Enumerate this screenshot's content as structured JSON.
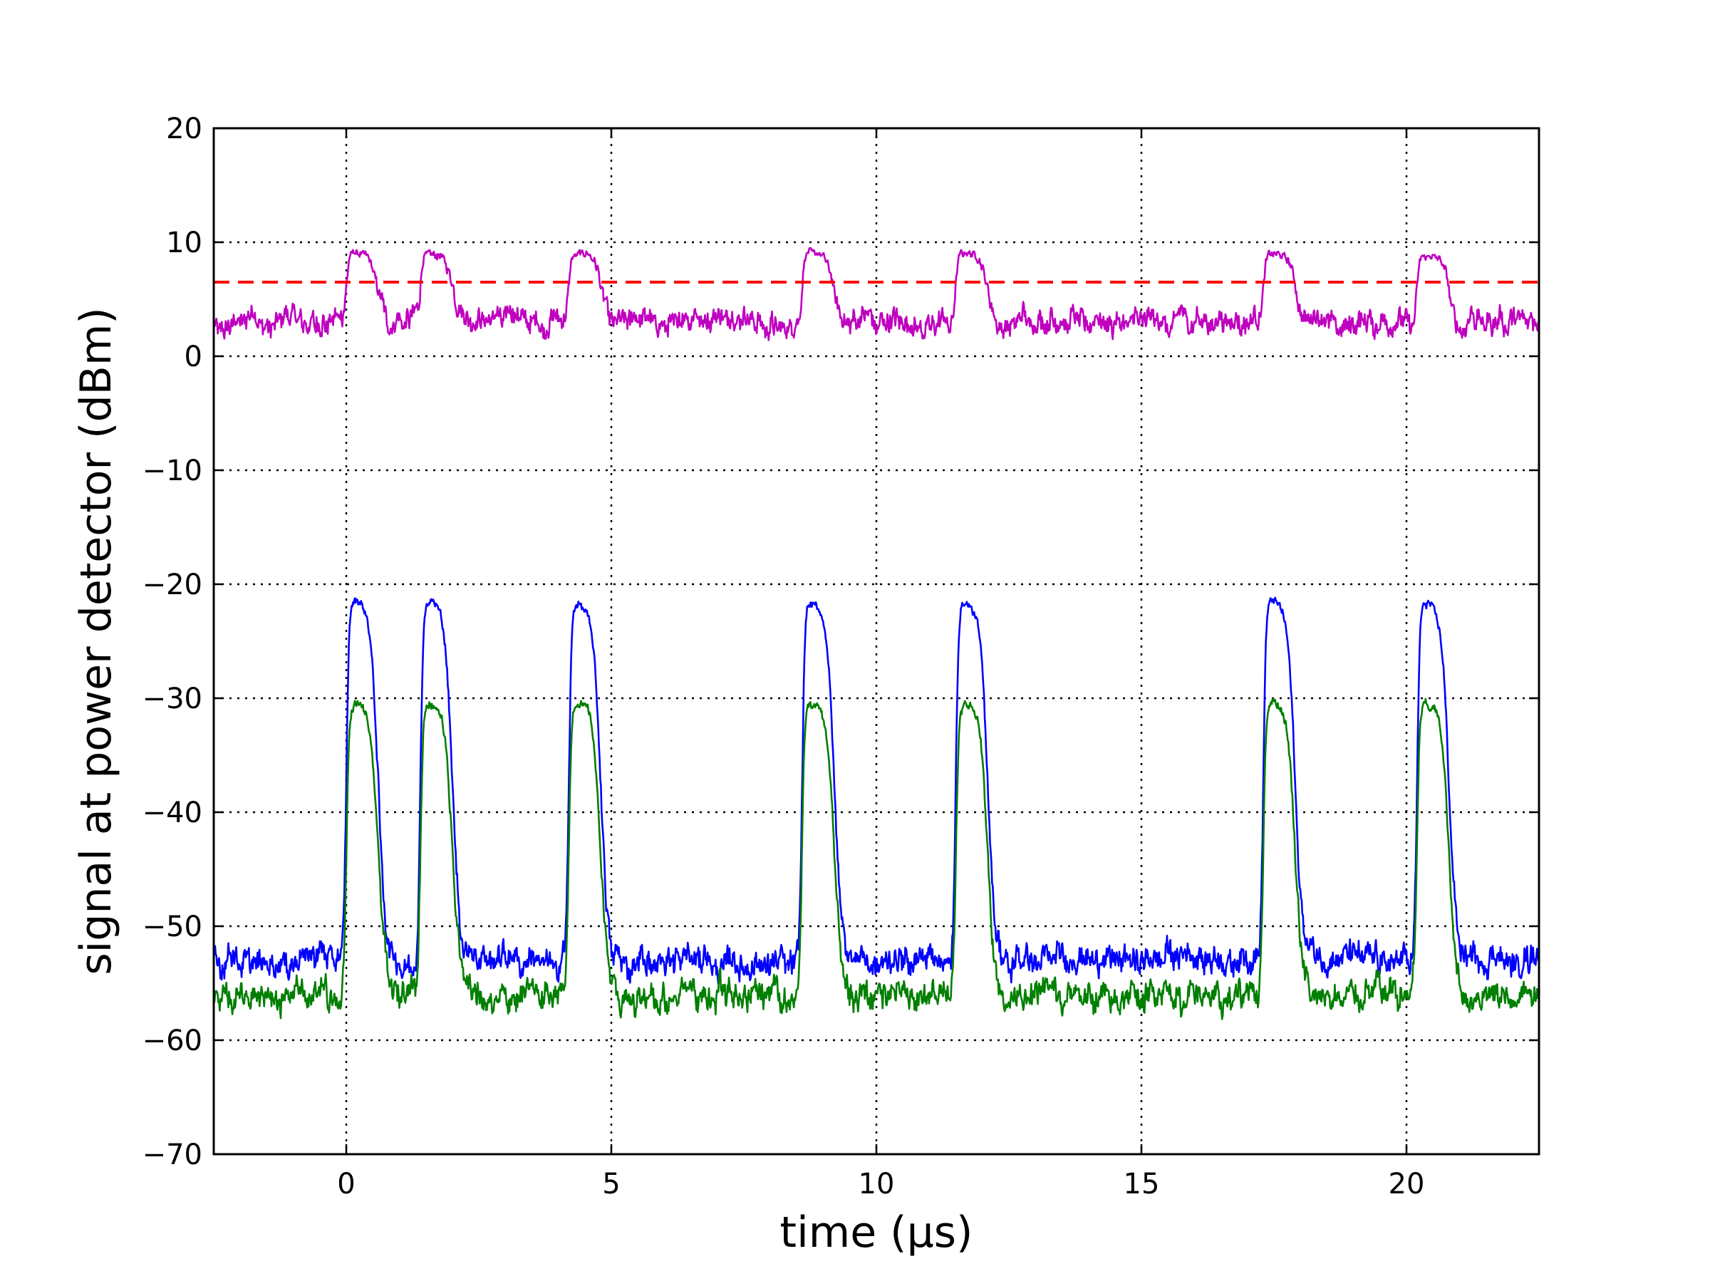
{
  "chart_data": {
    "type": "line",
    "title": "",
    "xlabel": "time (μs)",
    "ylabel": "signal at power detector (dBm)",
    "xlim": [
      -2.5,
      22.5
    ],
    "ylim": [
      -70,
      20
    ],
    "xticks": [
      0,
      5,
      10,
      15,
      20
    ],
    "xtick_labels": [
      "0",
      "5",
      "10",
      "15",
      "20"
    ],
    "yticks": [
      -70,
      -60,
      -50,
      -40,
      -30,
      -20,
      -10,
      0,
      10,
      20
    ],
    "ytick_labels": [
      "−70",
      "−60",
      "−50",
      "−40",
      "−30",
      "−20",
      "−10",
      "0",
      "10",
      "20"
    ],
    "grid": true,
    "legend": "none",
    "pulse_starts": [
      0.0,
      1.4,
      4.2,
      8.6,
      11.5,
      17.3,
      20.2
    ],
    "pulse_width": 0.6,
    "series": [
      {
        "color": "#bf00bf",
        "baseline": 3,
        "pulse_level": 9,
        "noise": 1.5
      },
      {
        "color": "#0000ff",
        "baseline": -53,
        "pulse_level": -21.5,
        "noise": 1.8
      },
      {
        "color": "#007f00",
        "baseline": -56,
        "pulse_level": -30.5,
        "noise": 1.8
      }
    ],
    "threshold": {
      "y": 6.5,
      "color": "#ff0000",
      "style": "dashed"
    }
  }
}
